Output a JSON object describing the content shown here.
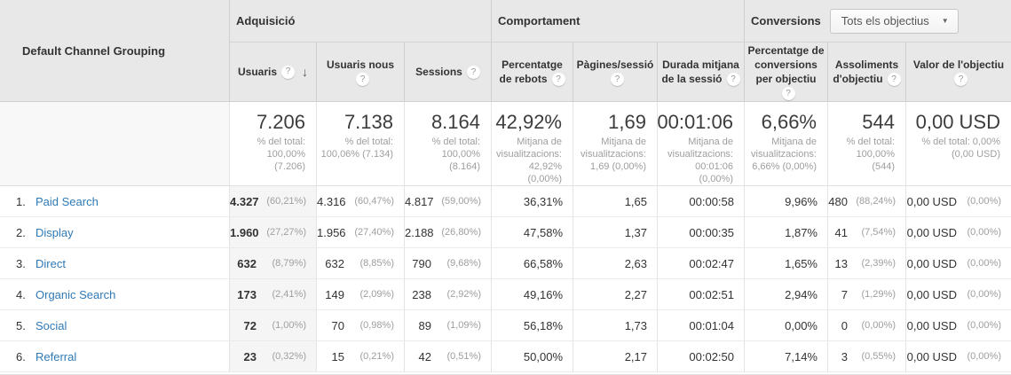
{
  "table": {
    "row_header": "Default Channel Grouping",
    "groups": {
      "acquisition": "Adquisició",
      "behavior": "Comportament",
      "conversions": "Conversions",
      "goal_selector_value": "Tots els objectius"
    },
    "columns": [
      {
        "label": "Usuaris"
      },
      {
        "label": "Usuaris nous"
      },
      {
        "label": "Sessions"
      },
      {
        "label": "Percentatge de rebots"
      },
      {
        "label": "Pàgines/sessió"
      },
      {
        "label": "Durada mitjana de la sessió"
      },
      {
        "label": "Percentatge de conversions per objectiu"
      },
      {
        "label": "Assoliments d'objectiu"
      },
      {
        "label": "Valor de l'objectiu"
      }
    ],
    "icons": {
      "help_glyph": "?",
      "sort_desc_glyph": "↓",
      "caret_glyph": "▼"
    },
    "totals": {
      "usuaris": {
        "value": "7.206",
        "note": "% del total: 100,00% (7.206)"
      },
      "usuaris_nous": {
        "value": "7.138",
        "note": "% del total: 100,06% (7.134)"
      },
      "sessions": {
        "value": "8.164",
        "note": "% del total: 100,00% (8.164)"
      },
      "rebots": {
        "value": "42,92%",
        "note": "Mitjana de visualitzacions: 42,92% (0,00%)"
      },
      "pagines": {
        "value": "1,69",
        "note": "Mitjana de visualitzacions: 1,69 (0,00%)"
      },
      "durada": {
        "value": "00:01:06",
        "note": "Mitjana de visualitzacions: 00:01:06 (0,00%)"
      },
      "conversions": {
        "value": "6,66%",
        "note": "Mitjana de visualitzacions: 6,66% (0,00%)"
      },
      "assoliments": {
        "value": "544",
        "note": "% del total: 100,00% (544)"
      },
      "valor": {
        "value": "0,00 USD",
        "note": "% del total: 0,00% (0,00 USD)"
      }
    },
    "rows": [
      {
        "num": "1.",
        "channel": "Paid Search",
        "usuaris": "4.327",
        "usuaris_pct": "(60,21%)",
        "usuaris_nous": "4.316",
        "usuaris_nous_pct": "(60,47%)",
        "sessions": "4.817",
        "sessions_pct": "(59,00%)",
        "rebots": "36,31%",
        "pagines": "1,65",
        "durada": "00:00:58",
        "conversions": "9,96%",
        "assoliments": "480",
        "assoliments_pct": "(88,24%)",
        "valor": "0,00 USD",
        "valor_pct": "(0,00%)"
      },
      {
        "num": "2.",
        "channel": "Display",
        "usuaris": "1.960",
        "usuaris_pct": "(27,27%)",
        "usuaris_nous": "1.956",
        "usuaris_nous_pct": "(27,40%)",
        "sessions": "2.188",
        "sessions_pct": "(26,80%)",
        "rebots": "47,58%",
        "pagines": "1,37",
        "durada": "00:00:35",
        "conversions": "1,87%",
        "assoliments": "41",
        "assoliments_pct": "(7,54%)",
        "valor": "0,00 USD",
        "valor_pct": "(0,00%)"
      },
      {
        "num": "3.",
        "channel": "Direct",
        "usuaris": "632",
        "usuaris_pct": "(8,79%)",
        "usuaris_nous": "632",
        "usuaris_nous_pct": "(8,85%)",
        "sessions": "790",
        "sessions_pct": "(9,68%)",
        "rebots": "66,58%",
        "pagines": "2,63",
        "durada": "00:02:47",
        "conversions": "1,65%",
        "assoliments": "13",
        "assoliments_pct": "(2,39%)",
        "valor": "0,00 USD",
        "valor_pct": "(0,00%)"
      },
      {
        "num": "4.",
        "channel": "Organic Search",
        "usuaris": "173",
        "usuaris_pct": "(2,41%)",
        "usuaris_nous": "149",
        "usuaris_nous_pct": "(2,09%)",
        "sessions": "238",
        "sessions_pct": "(2,92%)",
        "rebots": "49,16%",
        "pagines": "2,27",
        "durada": "00:02:51",
        "conversions": "2,94%",
        "assoliments": "7",
        "assoliments_pct": "(1,29%)",
        "valor": "0,00 USD",
        "valor_pct": "(0,00%)"
      },
      {
        "num": "5.",
        "channel": "Social",
        "usuaris": "72",
        "usuaris_pct": "(1,00%)",
        "usuaris_nous": "70",
        "usuaris_nous_pct": "(0,98%)",
        "sessions": "89",
        "sessions_pct": "(1,09%)",
        "rebots": "56,18%",
        "pagines": "1,73",
        "durada": "00:01:04",
        "conversions": "0,00%",
        "assoliments": "0",
        "assoliments_pct": "(0,00%)",
        "valor": "0,00 USD",
        "valor_pct": "(0,00%)"
      },
      {
        "num": "6.",
        "channel": "Referral",
        "usuaris": "23",
        "usuaris_pct": "(0,32%)",
        "usuaris_nous": "15",
        "usuaris_nous_pct": "(0,21%)",
        "sessions": "42",
        "sessions_pct": "(0,51%)",
        "rebots": "50,00%",
        "pagines": "2,17",
        "durada": "00:02:50",
        "conversions": "7,14%",
        "assoliments": "3",
        "assoliments_pct": "(0,55%)",
        "valor": "0,00 USD",
        "valor_pct": "(0,00%)"
      }
    ]
  }
}
